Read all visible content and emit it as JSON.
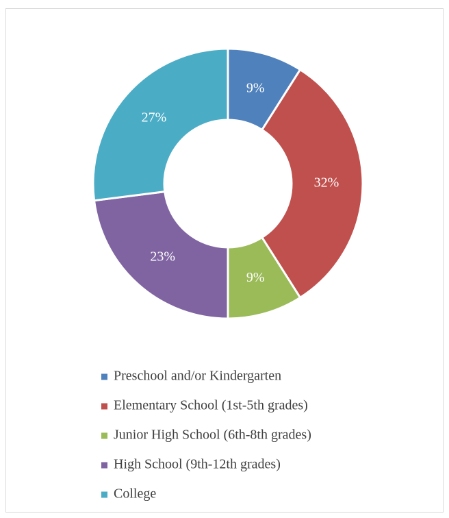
{
  "chart_data": {
    "type": "donut",
    "categories": [
      "Preschool and/or Kindergarten",
      "Elementary School (1st-5th grades)",
      "Junior High School (6th-8th grades)",
      "High School (9th-12th grades)",
      "College"
    ],
    "values": [
      9,
      32,
      9,
      23,
      27
    ],
    "value_labels": [
      "9%",
      "32%",
      "9%",
      "23%",
      "27%"
    ],
    "colors": [
      "#4f81bd",
      "#c0504d",
      "#9bbb59",
      "#8064a2",
      "#4bacc6"
    ],
    "legend": "bottom"
  }
}
